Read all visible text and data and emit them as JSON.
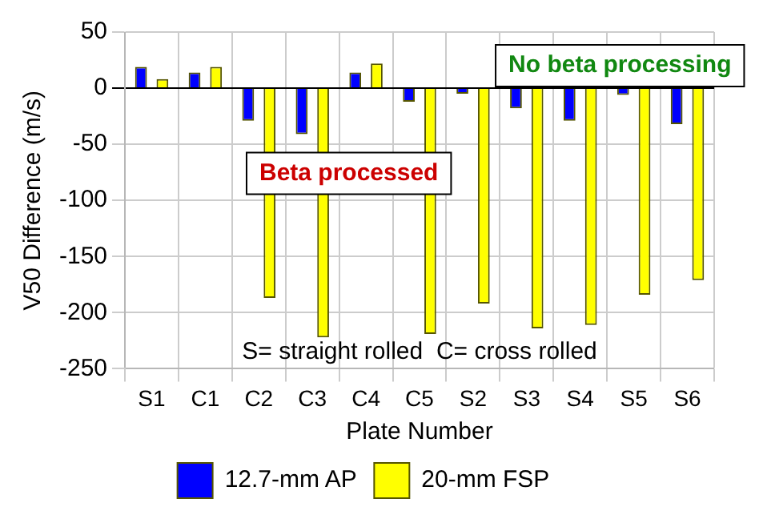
{
  "chart_data": {
    "type": "bar",
    "xlabel": "Plate Number",
    "ylabel": "V50 Difference (m/s)",
    "categories": [
      "S1",
      "C1",
      "C2",
      "C3",
      "C4",
      "C5",
      "S2",
      "S3",
      "S4",
      "S5",
      "S6"
    ],
    "series": [
      {
        "name": "12.7-mm AP",
        "color": "#0000ff",
        "values": [
          19,
          14,
          -29,
          -41,
          14,
          -12,
          -5,
          -18,
          -29,
          -6,
          -32
        ]
      },
      {
        "name": "20-mm FSP",
        "color": "#ffff00",
        "values": [
          8,
          19,
          -187,
          -222,
          22,
          -219,
          -192,
          -214,
          -211,
          -184,
          -171
        ]
      }
    ],
    "ylim": [
      -250,
      50
    ],
    "yticks": [
      -250,
      -200,
      -150,
      -100,
      -50,
      0,
      50
    ],
    "grid": true,
    "legend": "bottom",
    "annotations": [
      "No beta processing",
      "Beta processed",
      "S= straight rolled  C= cross rolled"
    ]
  }
}
